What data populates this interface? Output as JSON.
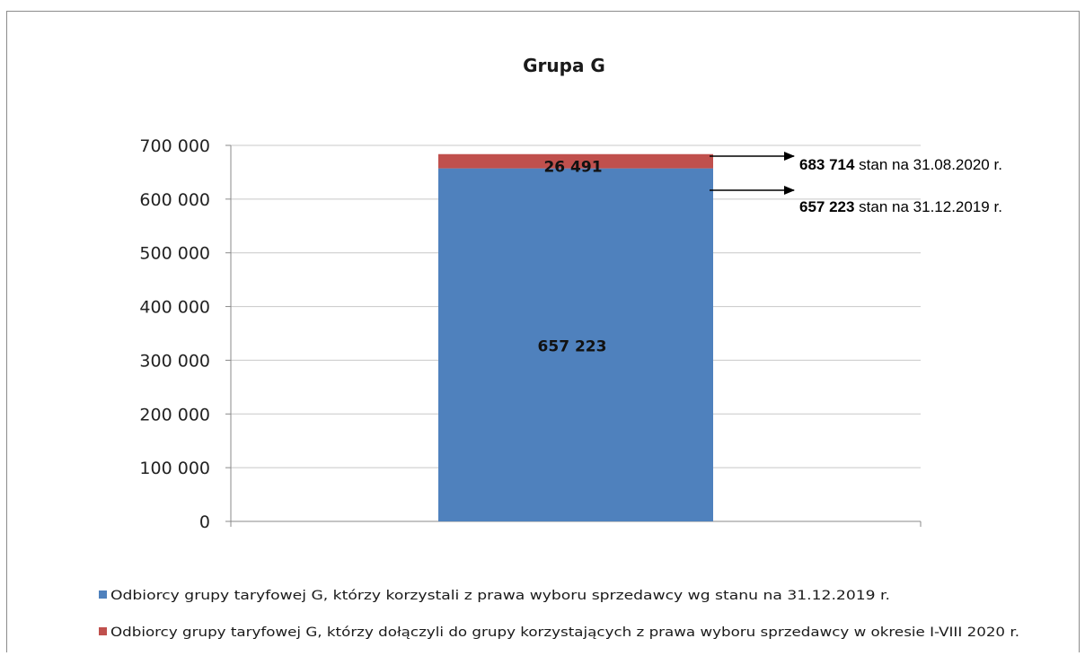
{
  "chart_data": {
    "type": "bar",
    "stacked": true,
    "title": "Grupa G",
    "categories": [
      ""
    ],
    "ylim": [
      0,
      700000
    ],
    "yticks": [
      0,
      100000,
      200000,
      300000,
      400000,
      500000,
      600000,
      700000
    ],
    "ytick_labels": [
      "0",
      "100 000",
      "200 000",
      "300 000",
      "400 000",
      "500 000",
      "600 000",
      "700 000"
    ],
    "grid": true,
    "legend_position": "bottom",
    "series": [
      {
        "name": "Odbiorcy grupy taryfowej G, którzy korzystali z prawa wyboru sprzedawcy wg stanu na 31.12.2019 r.",
        "values": [
          657223
        ],
        "label": "657 223",
        "color": "#4f81bd"
      },
      {
        "name": "Odbiorcy grupy taryfowej G, którzy dołączyli do grupy korzystających z  prawa wyboru sprzedawcy w okresie I-VIII 2020 r.",
        "values": [
          26491
        ],
        "label": "26 491",
        "color": "#c0504d"
      }
    ],
    "annotations": [
      {
        "value": "683 714",
        "text": " stan na 31.08.2020 r.",
        "y": 683714
      },
      {
        "value": "657 223",
        "text": " stan na 31.12.2019 r.",
        "y": 657223
      }
    ]
  }
}
